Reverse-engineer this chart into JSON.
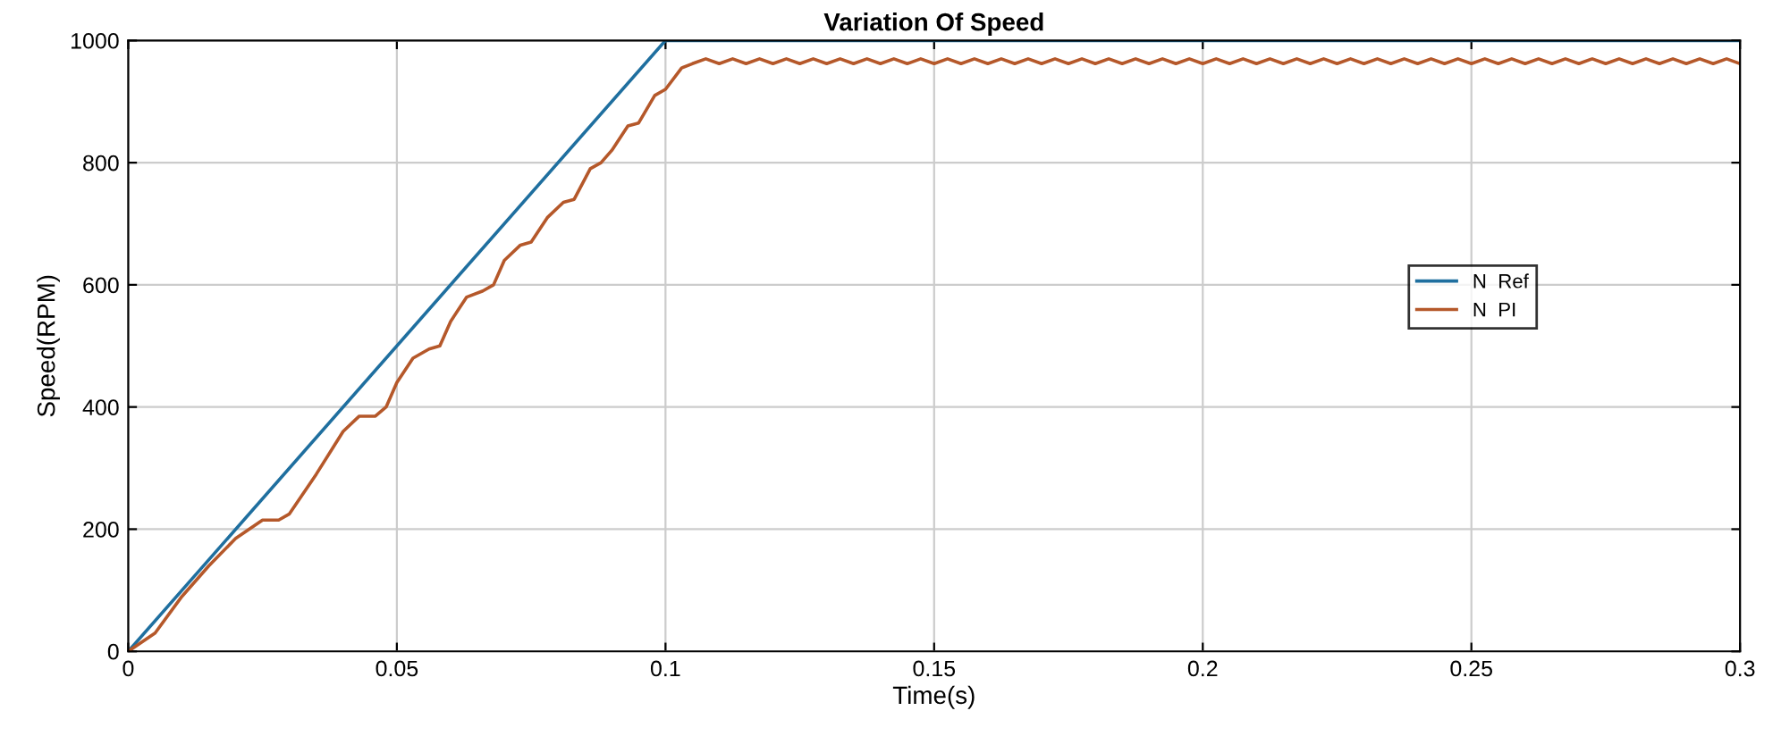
{
  "chart_data": {
    "type": "line",
    "title": "Variation Of Speed",
    "xlabel": "Time(s)",
    "ylabel": "Speed(RPM)",
    "xlim": [
      0,
      0.3
    ],
    "ylim": [
      0,
      1000
    ],
    "xticks": [
      0,
      0.05,
      0.1,
      0.15,
      0.2,
      0.25,
      0.3
    ],
    "yticks": [
      0,
      200,
      400,
      600,
      800,
      1000
    ],
    "grid": true,
    "legend": "right",
    "line_style": "solid",
    "marker": "none",
    "series": [
      {
        "name": "N  Ref",
        "color": "#1f6f9f",
        "x": [
          0,
          0.1,
          0.3
        ],
        "values": [
          0,
          1000,
          1000
        ]
      },
      {
        "name": "N  PI",
        "color": "#b5582a",
        "x": [
          0,
          0.005,
          0.01,
          0.015,
          0.02,
          0.025,
          0.028,
          0.03,
          0.035,
          0.04,
          0.043,
          0.046,
          0.048,
          0.05,
          0.053,
          0.056,
          0.058,
          0.06,
          0.063,
          0.066,
          0.068,
          0.07,
          0.073,
          0.075,
          0.078,
          0.081,
          0.083,
          0.086,
          0.088,
          0.09,
          0.093,
          0.095,
          0.098,
          0.1,
          0.103,
          0.105,
          0.1075,
          0.11,
          0.1125,
          0.115,
          0.1175,
          0.12,
          0.1225,
          0.125,
          0.1275,
          0.13,
          0.1325,
          0.135,
          0.1375,
          0.14,
          0.1425,
          0.145,
          0.1475,
          0.15,
          0.1525,
          0.155,
          0.1575,
          0.16,
          0.1625,
          0.165,
          0.1675,
          0.17,
          0.1725,
          0.175,
          0.1775,
          0.18,
          0.1825,
          0.185,
          0.1875,
          0.19,
          0.1925,
          0.195,
          0.1975,
          0.2,
          0.2025,
          0.205,
          0.2075,
          0.21,
          0.2125,
          0.215,
          0.2175,
          0.22,
          0.2225,
          0.225,
          0.2275,
          0.23,
          0.2325,
          0.235,
          0.2375,
          0.24,
          0.2425,
          0.245,
          0.2475,
          0.25,
          0.2525,
          0.255,
          0.2575,
          0.26,
          0.2625,
          0.265,
          0.2675,
          0.27,
          0.2725,
          0.275,
          0.2775,
          0.28,
          0.2825,
          0.285,
          0.2875,
          0.29,
          0.2925,
          0.295,
          0.2975,
          0.3
        ],
        "values": [
          0,
          30,
          90,
          140,
          185,
          215,
          215,
          225,
          290,
          360,
          385,
          385,
          400,
          440,
          480,
          495,
          500,
          540,
          580,
          590,
          600,
          640,
          665,
          670,
          710,
          735,
          740,
          790,
          800,
          820,
          860,
          865,
          910,
          920,
          955,
          962,
          970,
          962,
          970,
          962,
          970,
          962,
          970,
          962,
          970,
          962,
          970,
          962,
          970,
          962,
          970,
          962,
          970,
          962,
          970,
          962,
          970,
          962,
          970,
          962,
          970,
          962,
          970,
          962,
          970,
          962,
          970,
          962,
          970,
          962,
          970,
          962,
          970,
          962,
          970,
          962,
          970,
          962,
          970,
          962,
          970,
          962,
          970,
          962,
          970,
          962,
          970,
          962,
          970,
          962,
          970,
          962,
          970,
          962,
          970,
          962,
          970,
          962,
          970,
          962,
          970,
          962,
          970,
          962,
          970,
          962,
          970,
          962,
          970,
          962,
          970,
          962,
          970,
          962
        ]
      }
    ]
  }
}
